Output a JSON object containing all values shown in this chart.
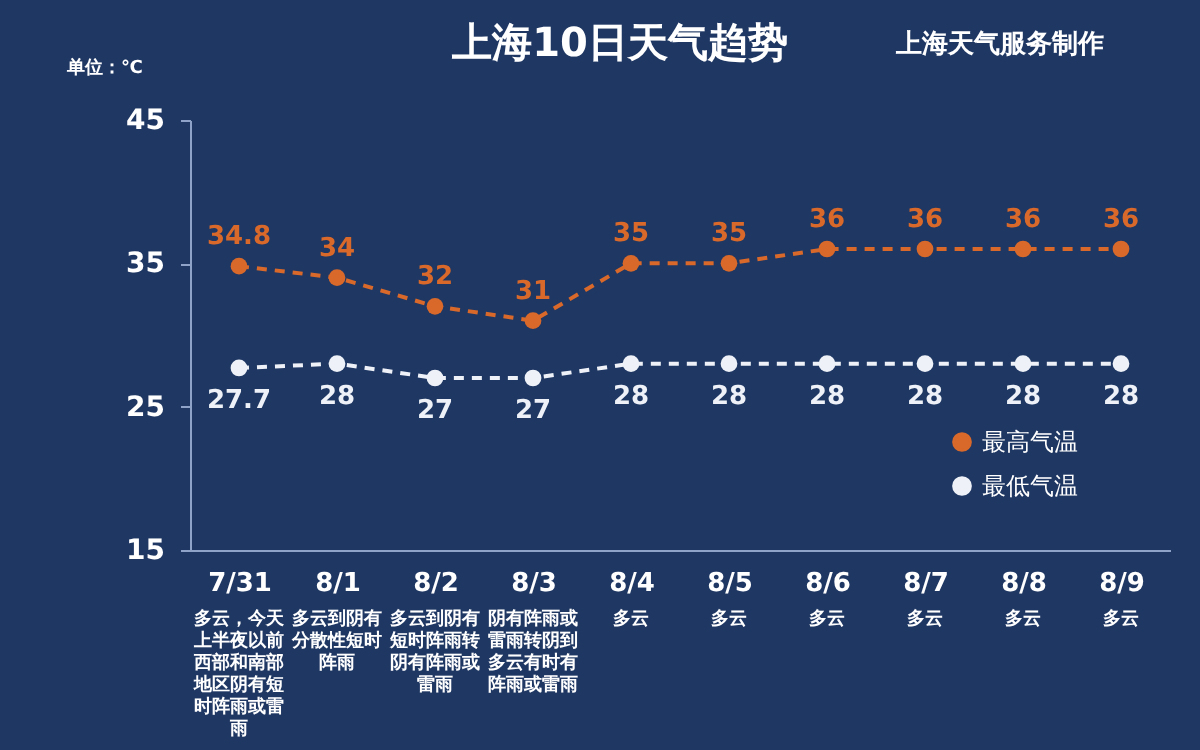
{
  "chart_data": {
    "type": "line",
    "title": "上海10日天气趋势",
    "subtitle": "上海天气服务制作",
    "ylabel": "单位：℃",
    "categories": [
      "7/31",
      "8/1",
      "8/2",
      "8/3",
      "8/4",
      "8/5",
      "8/6",
      "8/7",
      "8/8",
      "8/9"
    ],
    "series": [
      {
        "name": "最高气温",
        "color": "#d8692a",
        "values": [
          34.8,
          34,
          32,
          31,
          35,
          35,
          36,
          36,
          36,
          36
        ]
      },
      {
        "name": "最低气温",
        "color": "#eef2f8",
        "values": [
          27.7,
          28,
          27,
          27,
          28,
          28,
          28,
          28,
          28,
          28
        ]
      }
    ],
    "annotations": [
      "多云，今天上半夜以前西部和南部地区阴有短时阵雨或雷雨",
      "多云到阴有分散性短时阵雨",
      "多云到阴有短时阵雨转阴有阵雨或雷雨",
      "阴有阵雨或雷雨转阴到多云有时有阵雨或雷雨",
      "多云",
      "多云",
      "多云",
      "多云",
      "多云",
      "多云"
    ],
    "ylim": [
      15,
      45
    ],
    "yticks": [
      15,
      25,
      35,
      45
    ],
    "grid": false,
    "legend": "bottom right",
    "data_labels": true,
    "marker": "circle",
    "line_style": "dashed"
  }
}
